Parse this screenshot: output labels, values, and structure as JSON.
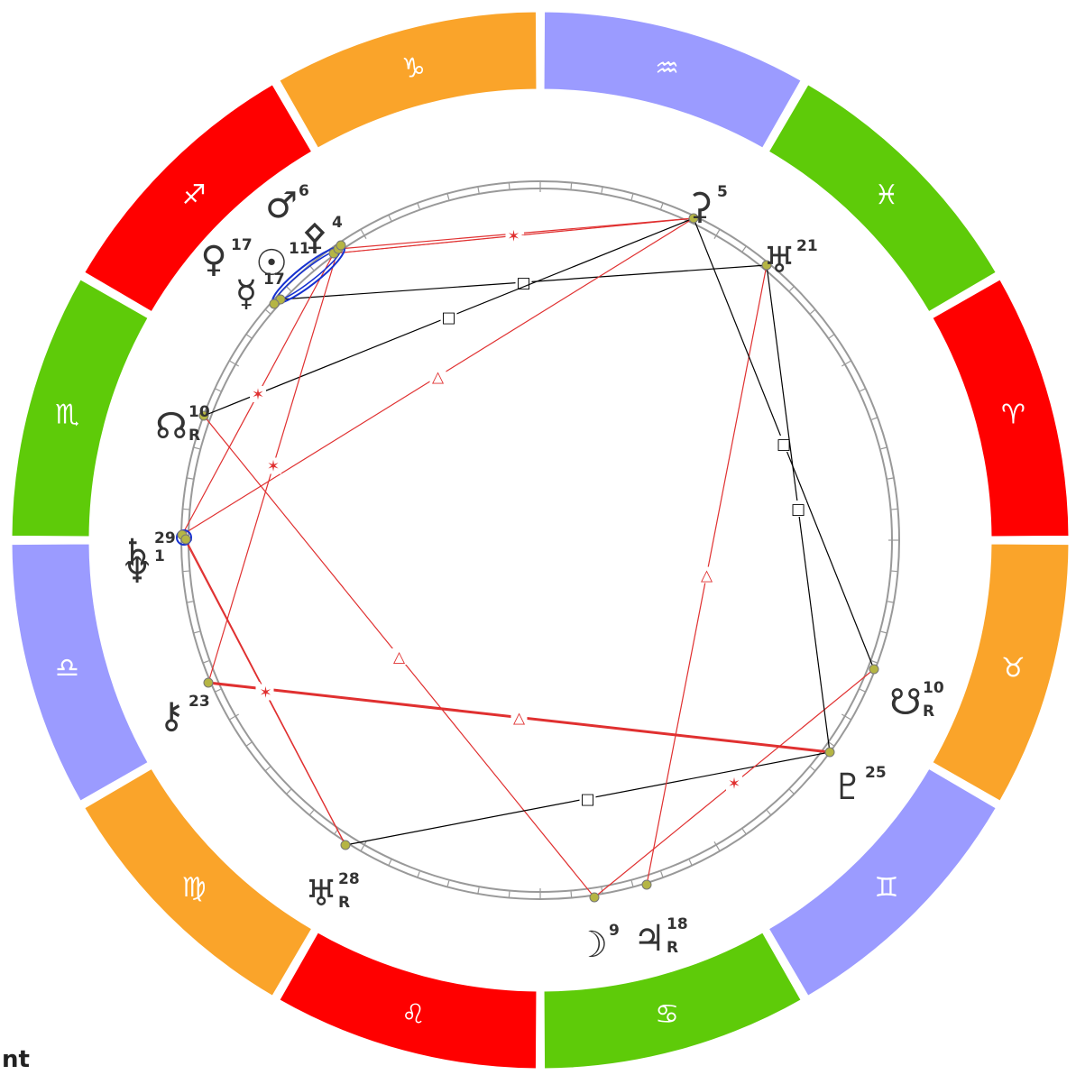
{
  "corner_label": "nt",
  "zodiac": [
    {
      "name": "capricorn",
      "symbol": "♑",
      "color": "#FAA42A"
    },
    {
      "name": "sagittarius",
      "symbol": "♐",
      "color": "#FF0000"
    },
    {
      "name": "scorpio",
      "symbol": "♏",
      "color": "#5ECB09"
    },
    {
      "name": "libra",
      "symbol": "♎",
      "color": "#9B9BFF"
    },
    {
      "name": "virgo",
      "symbol": "♍",
      "color": "#FAA42A"
    },
    {
      "name": "leo",
      "symbol": "♌",
      "color": "#FF0000"
    },
    {
      "name": "cancer",
      "symbol": "♋",
      "color": "#5ECB09"
    },
    {
      "name": "gemini",
      "symbol": "♊",
      "color": "#9B9BFF"
    },
    {
      "name": "taurus",
      "symbol": "♉",
      "color": "#FAA42A"
    },
    {
      "name": "aries",
      "symbol": "♈",
      "color": "#FF0000"
    },
    {
      "name": "pisces",
      "symbol": "♓",
      "color": "#5ECB09"
    },
    {
      "name": "aquarius",
      "symbol": "♒",
      "color": "#9B9BFF"
    }
  ],
  "planets": [
    {
      "name": "ceres",
      "symbol": "⚳",
      "degree": "5",
      "retrograde": ""
    },
    {
      "name": "neptune-alt",
      "symbol": "♅",
      "degree": "21",
      "retrograde": ""
    },
    {
      "name": "south-node",
      "symbol": "☋",
      "degree": "10",
      "retrograde": "R"
    },
    {
      "name": "pluto",
      "symbol": "♇",
      "degree": "25",
      "retrograde": ""
    },
    {
      "name": "jupiter",
      "symbol": "♃",
      "degree": "18",
      "retrograde": "R"
    },
    {
      "name": "moon",
      "symbol": "☽",
      "degree": "9",
      "retrograde": ""
    },
    {
      "name": "uranus",
      "symbol": "♅",
      "degree": "28",
      "retrograde": "R"
    },
    {
      "name": "chiron",
      "symbol": "⚷",
      "degree": "23",
      "retrograde": ""
    },
    {
      "name": "saturn",
      "symbol": "♄",
      "degree": "29",
      "retrograde": ""
    },
    {
      "name": "neptune",
      "symbol": "♆",
      "degree": "1",
      "retrograde": ""
    },
    {
      "name": "north-node",
      "symbol": "☊",
      "degree": "10",
      "retrograde": "R"
    },
    {
      "name": "mercury",
      "symbol": "☿",
      "degree": "17",
      "retrograde": ""
    },
    {
      "name": "venus",
      "symbol": "♀",
      "degree": "17",
      "retrograde": ""
    },
    {
      "name": "sun",
      "symbol": "☉",
      "degree": "11",
      "retrograde": ""
    },
    {
      "name": "pallas",
      "symbol": "⚴",
      "degree": "4",
      "retrograde": ""
    },
    {
      "name": "mars",
      "symbol": "♂",
      "degree": "6",
      "retrograde": ""
    }
  ],
  "aspects": [
    {
      "type": "sextile",
      "symbol": "✶",
      "color": "#E03030"
    },
    {
      "type": "square",
      "symbol": "□",
      "color": "#000000"
    },
    {
      "type": "trine",
      "symbol": "△",
      "color": "#E03030"
    },
    {
      "type": "conjunction",
      "symbol": "",
      "color": "#1530D0"
    }
  ],
  "colors": {
    "point": "#B5B544",
    "ring": "#999999"
  }
}
